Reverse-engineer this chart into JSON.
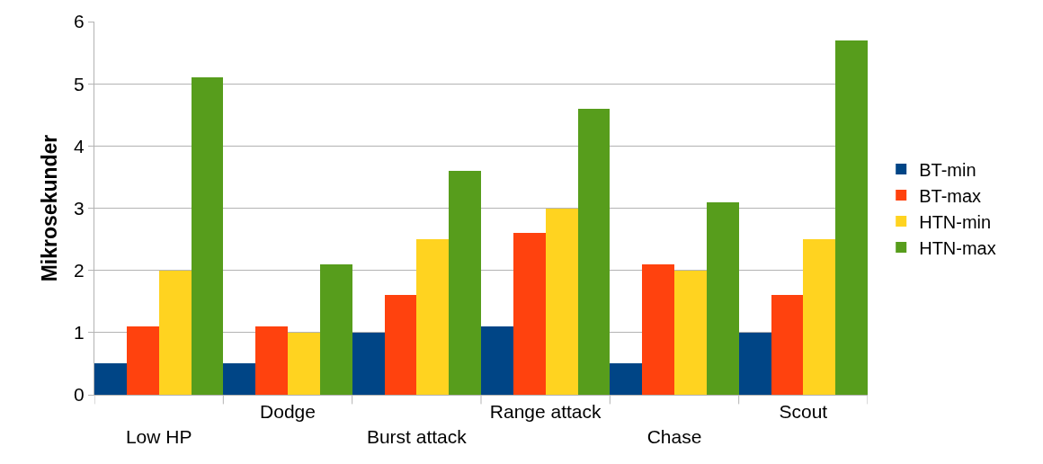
{
  "chart_data": {
    "type": "bar",
    "ylabel": "Mikrosekunder",
    "categories": [
      "Low HP",
      "Dodge",
      "Burst attack",
      "Range attack",
      "Chase",
      "Scout"
    ],
    "series": [
      {
        "name": "BT-min",
        "color": "#004586",
        "values": [
          0.5,
          0.5,
          1.0,
          1.1,
          0.5,
          1.0
        ]
      },
      {
        "name": "BT-max",
        "color": "#ff420e",
        "values": [
          1.1,
          1.1,
          1.6,
          2.6,
          2.1,
          1.6
        ]
      },
      {
        "name": "HTN-min",
        "color": "#ffd320",
        "values": [
          2.0,
          1.0,
          2.5,
          3.0,
          2.0,
          2.5
        ]
      },
      {
        "name": "HTN-max",
        "color": "#579d1c",
        "values": [
          5.1,
          2.1,
          3.6,
          4.6,
          3.1,
          5.7
        ]
      }
    ],
    "ylim": [
      0,
      6
    ],
    "yticks": [
      0,
      1,
      2,
      3,
      4,
      5,
      6
    ],
    "grid": "y",
    "legend": "right"
  }
}
